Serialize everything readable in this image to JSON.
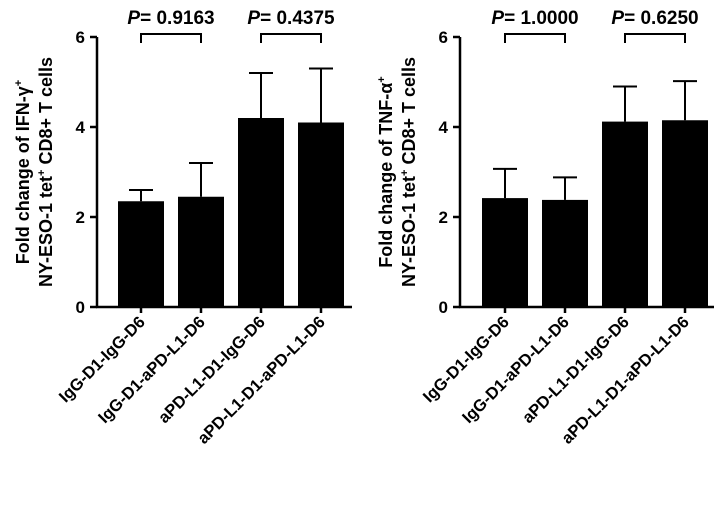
{
  "chart_data": [
    {
      "type": "bar",
      "ylabel_line1_prefix": "Fold change of IFN-γ",
      "ylabel_line1_sup": "+",
      "ylabel_line2_prefix": "NY-ESO-1 tet",
      "ylabel_line2_sup": "+",
      "ylabel_line2_suffix": " CD8+ T cells",
      "ylim": [
        0,
        6
      ],
      "yticks": [
        "0",
        "2",
        "4",
        "6"
      ],
      "categories": [
        "IgG-D1-IgG-D6",
        "IgG-D1-aPD-L1-D6",
        "aPD-L1-D1-IgG-D6",
        "aPD-L1-D1-aPD-L1-D6"
      ],
      "values": [
        2.35,
        2.45,
        4.2,
        4.1
      ],
      "errors": [
        0.25,
        0.75,
        1.0,
        1.2
      ],
      "comparisons": [
        {
          "pair": [
            0,
            1
          ],
          "p_label": "P",
          "p_value": "= 0.9163"
        },
        {
          "pair": [
            2,
            3
          ],
          "p_label": "P",
          "p_value": "= 0.4375"
        }
      ]
    },
    {
      "type": "bar",
      "ylabel_line1_prefix": "Fold change of TNF-α",
      "ylabel_line1_sup": "+",
      "ylabel_line2_prefix": "NY-ESO-1 tet",
      "ylabel_line2_sup": "+",
      "ylabel_line2_suffix": " CD8+ T cells",
      "ylim": [
        0,
        6
      ],
      "yticks": [
        "0",
        "2",
        "4",
        "6"
      ],
      "categories": [
        "IgG-D1-IgG-D6",
        "IgG-D1-aPD-L1-D6",
        "aPD-L1-D1-IgG-D6",
        "aPD-L1-D1-aPD-L1-D6"
      ],
      "values": [
        2.42,
        2.38,
        4.12,
        4.15
      ],
      "errors": [
        0.65,
        0.5,
        0.78,
        0.87
      ],
      "comparisons": [
        {
          "pair": [
            0,
            1
          ],
          "p_label": "P",
          "p_value": "= 1.0000"
        },
        {
          "pair": [
            2,
            3
          ],
          "p_label": "P",
          "p_value": "= 0.6250"
        }
      ]
    }
  ]
}
